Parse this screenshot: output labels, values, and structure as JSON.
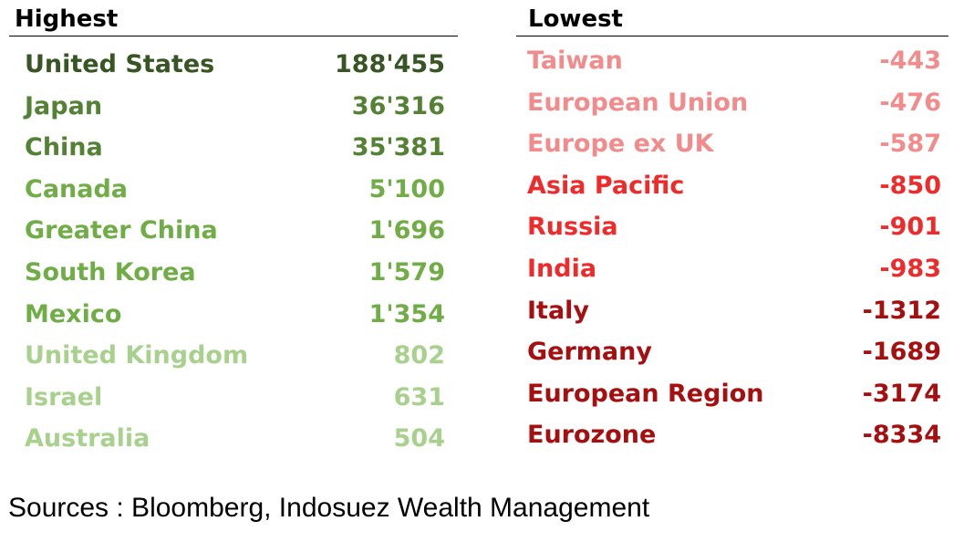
{
  "chart_data": {
    "type": "table",
    "highest": {
      "header": "Highest",
      "rows": [
        {
          "name": "United States",
          "value": "188'455",
          "color": "#375623"
        },
        {
          "name": "Japan",
          "value": "36'316",
          "color": "#548235"
        },
        {
          "name": "China",
          "value": "35'381",
          "color": "#548235"
        },
        {
          "name": "Canada",
          "value": "5'100",
          "color": "#70AD47"
        },
        {
          "name": "Greater China",
          "value": "1'696",
          "color": "#70AD47"
        },
        {
          "name": "South Korea",
          "value": "1'579",
          "color": "#70AD47"
        },
        {
          "name": "Mexico",
          "value": "1'354",
          "color": "#70AD47"
        },
        {
          "name": "United Kingdom",
          "value": "802",
          "color": "#A9D18E"
        },
        {
          "name": "Israel",
          "value": "631",
          "color": "#A9D18E"
        },
        {
          "name": "Australia",
          "value": "504",
          "color": "#A9D18E"
        }
      ]
    },
    "lowest": {
      "header": "Lowest",
      "rows": [
        {
          "name": "Taiwan",
          "value": "-443",
          "color": "#F28B8B"
        },
        {
          "name": "European Union",
          "value": "-476",
          "color": "#F28B8B"
        },
        {
          "name": "Europe ex UK",
          "value": "-587",
          "color": "#F28B8B"
        },
        {
          "name": "Asia Pacific",
          "value": "-850",
          "color": "#EE2A2A"
        },
        {
          "name": "Russia",
          "value": "-901",
          "color": "#EE2A2A"
        },
        {
          "name": "India",
          "value": "-983",
          "color": "#EE2A2A"
        },
        {
          "name": "Italy",
          "value": "-1312",
          "color": "#A50F0F"
        },
        {
          "name": "Germany",
          "value": "-1689",
          "color": "#A50F0F"
        },
        {
          "name": "European Region",
          "value": "-3174",
          "color": "#A50F0F"
        },
        {
          "name": "Eurozone",
          "value": "-8334",
          "color": "#A50F0F"
        }
      ]
    }
  },
  "source": "Sources : Bloomberg, Indosuez Wealth Management"
}
